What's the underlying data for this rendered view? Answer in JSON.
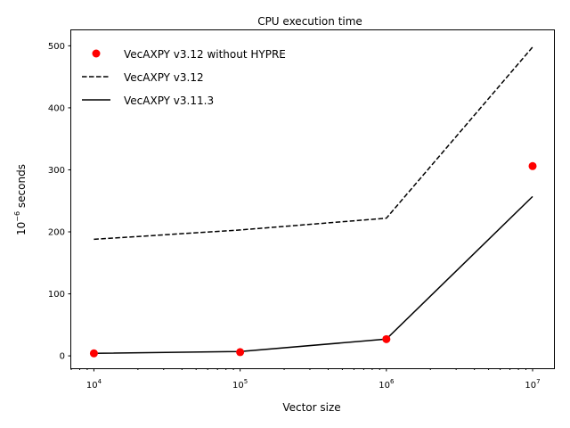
{
  "chart_data": {
    "type": "line",
    "title": "CPU execution time",
    "xlabel": "Vector size",
    "ylabel": "10",
    "ylabel_exponent": "−6",
    "ylabel_suffix": " seconds",
    "xscale": "log",
    "xlim": [
      7000,
      14000000
    ],
    "ylim": [
      -20,
      525
    ],
    "grid": false,
    "legend_position": "top-left",
    "x_ticks": [
      {
        "value": 10000,
        "base": "10",
        "exp": "4"
      },
      {
        "value": 100000,
        "base": "10",
        "exp": "5"
      },
      {
        "value": 1000000,
        "base": "10",
        "exp": "6"
      },
      {
        "value": 10000000,
        "base": "10",
        "exp": "7"
      }
    ],
    "y_ticks": [
      0,
      100,
      200,
      300,
      400,
      500
    ],
    "series": [
      {
        "name": "VecAXPY v3.12 without HYPRE",
        "style": "marker",
        "color": "#ff0000",
        "x": [
          10000,
          100000,
          1000000,
          10000000
        ],
        "y": [
          4,
          6,
          27,
          306
        ]
      },
      {
        "name": "VecAXPY v3.12",
        "style": "dashed",
        "color": "#000000",
        "x": [
          10000,
          100000,
          1000000,
          10000000
        ],
        "y": [
          188,
          203,
          222,
          498
        ]
      },
      {
        "name": "VecAXPY v3.11.3",
        "style": "solid",
        "color": "#000000",
        "x": [
          10000,
          100000,
          1000000,
          10000000
        ],
        "y": [
          4,
          7,
          27,
          257
        ]
      }
    ]
  }
}
